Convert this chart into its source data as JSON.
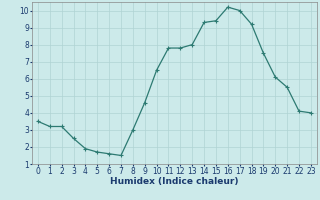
{
  "x": [
    0,
    1,
    2,
    3,
    4,
    5,
    6,
    7,
    8,
    9,
    10,
    11,
    12,
    13,
    14,
    15,
    16,
    17,
    18,
    19,
    20,
    21,
    22,
    23
  ],
  "y": [
    3.5,
    3.2,
    3.2,
    2.5,
    1.9,
    1.7,
    1.6,
    1.5,
    3.0,
    4.6,
    6.5,
    7.8,
    7.8,
    8.0,
    9.3,
    9.4,
    10.2,
    10.0,
    9.2,
    7.5,
    6.1,
    5.5,
    4.1,
    4.0
  ],
  "line_color": "#2d7a72",
  "marker": "+",
  "markersize": 3,
  "linewidth": 0.9,
  "bg_color": "#cceaea",
  "grid_color": "#b0d4d4",
  "xlabel": "Humidex (Indice chaleur)",
  "xlabel_fontsize": 6.5,
  "xlabel_color": "#1a3a6e",
  "xlim": [
    -0.5,
    23.5
  ],
  "ylim": [
    1,
    10.5
  ],
  "yticks": [
    1,
    2,
    3,
    4,
    5,
    6,
    7,
    8,
    9,
    10
  ],
  "xticks": [
    0,
    1,
    2,
    3,
    4,
    5,
    6,
    7,
    8,
    9,
    10,
    11,
    12,
    13,
    14,
    15,
    16,
    17,
    18,
    19,
    20,
    21,
    22,
    23
  ],
  "tick_fontsize": 5.5,
  "tick_color": "#1a3a6e",
  "fig_bg_color": "#cceaea",
  "spine_color": "#888888"
}
